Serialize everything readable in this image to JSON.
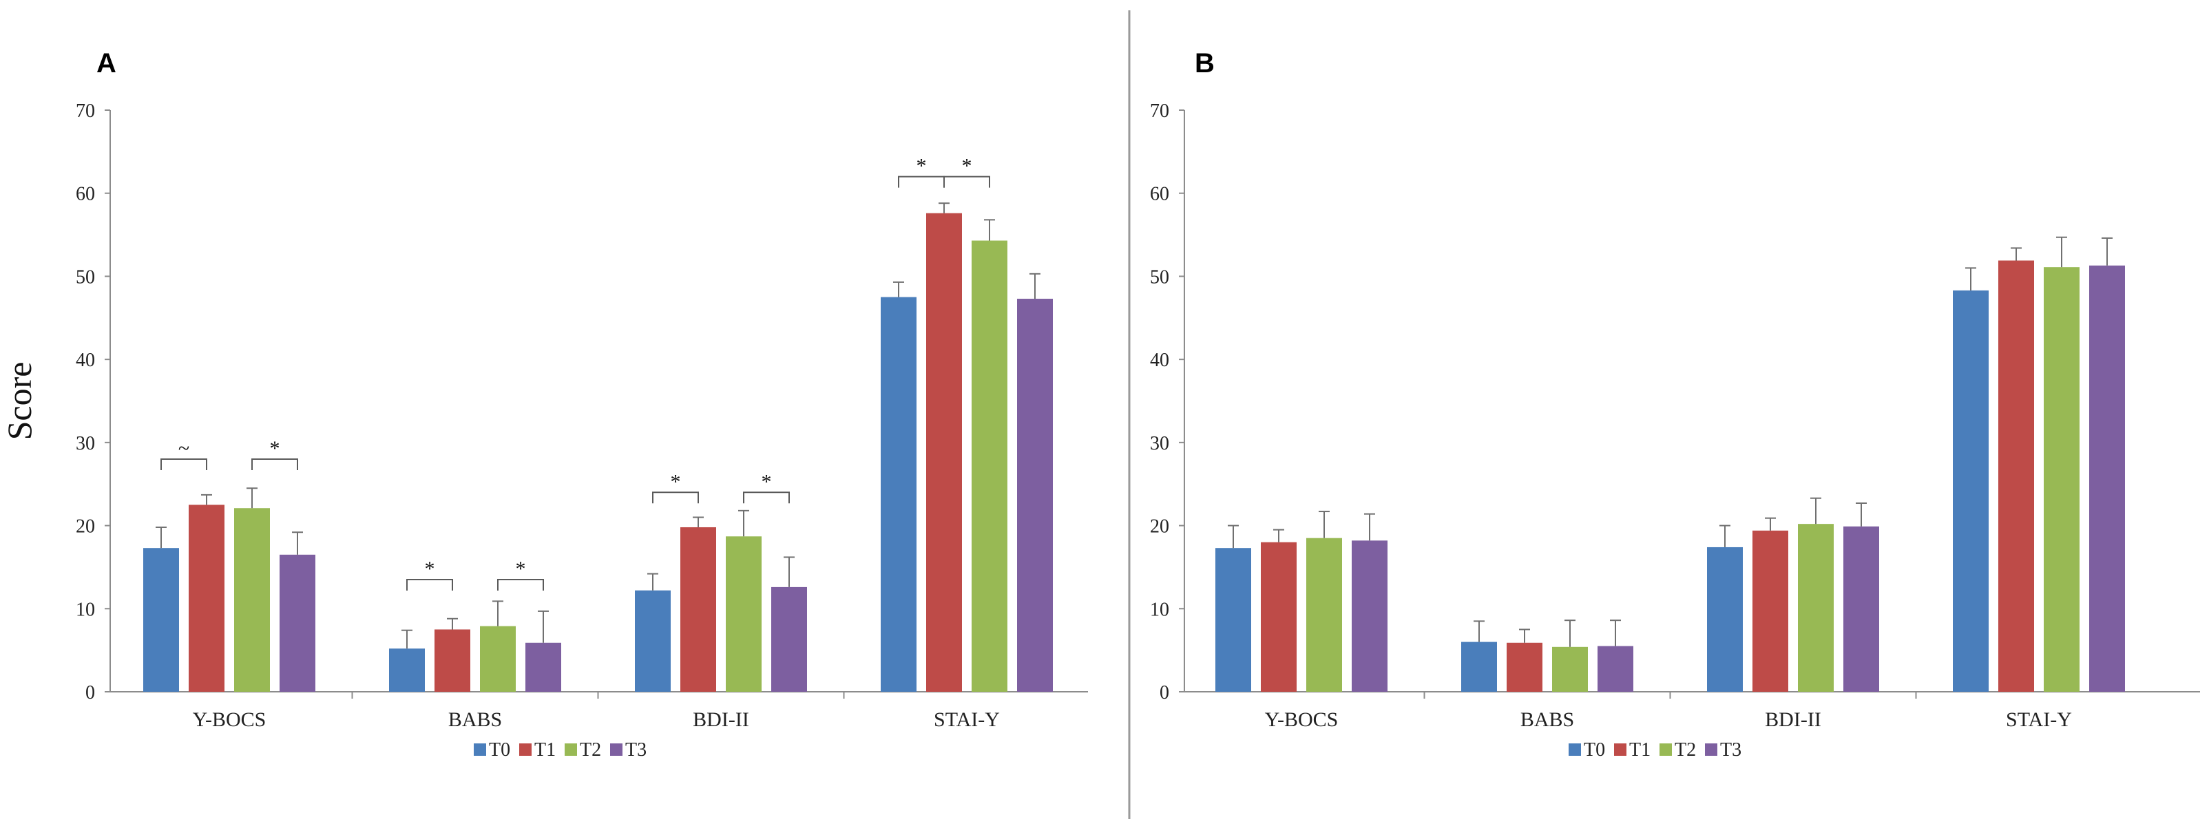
{
  "colors": {
    "T0": "#4a7ebb",
    "T1": "#be4b48",
    "T2": "#98b954",
    "T3": "#7d5fa0"
  },
  "chart_data": [
    {
      "type": "bar",
      "panel": "A",
      "ylabel": "Score",
      "xlabel": "",
      "ylim": [
        0,
        70
      ],
      "yticks": [
        "0",
        "10",
        "20",
        "30",
        "40",
        "50",
        "60",
        "70"
      ],
      "categories": [
        "Y-BOCS",
        "BABS",
        "BDI-II",
        "STAI-Y"
      ],
      "legend": {
        "position": "bottom-center",
        "entries": [
          "T0",
          "T1",
          "T2",
          "T3"
        ]
      },
      "series": [
        {
          "name": "T0",
          "values": [
            17.3,
            5.2,
            12.2,
            47.5
          ],
          "errors": [
            2.5,
            2.2,
            2.0,
            1.8
          ]
        },
        {
          "name": "T1",
          "values": [
            22.5,
            7.5,
            19.8,
            57.6
          ],
          "errors": [
            1.2,
            1.3,
            1.2,
            1.2
          ]
        },
        {
          "name": "T2",
          "values": [
            22.1,
            7.9,
            18.7,
            54.3
          ],
          "errors": [
            2.4,
            3.0,
            3.1,
            2.5
          ]
        },
        {
          "name": "T3",
          "values": [
            16.5,
            5.9,
            12.6,
            47.3
          ],
          "errors": [
            2.7,
            3.8,
            3.6,
            3.0
          ]
        }
      ],
      "annotations": [
        {
          "category": "Y-BOCS",
          "from": "T0",
          "to": "T1",
          "level": 28,
          "label": "~"
        },
        {
          "category": "Y-BOCS",
          "from": "T2",
          "to": "T3",
          "level": 28,
          "label": "*"
        },
        {
          "category": "BABS",
          "from": "T0",
          "to": "T1",
          "level": 13.5,
          "label": "*"
        },
        {
          "category": "BABS",
          "from": "T2",
          "to": "T3",
          "level": 13.5,
          "label": "*"
        },
        {
          "category": "BDI-II",
          "from": "T0",
          "to": "T1",
          "level": 24,
          "label": "*"
        },
        {
          "category": "BDI-II",
          "from": "T2",
          "to": "T3",
          "level": 24,
          "label": "*"
        },
        {
          "category": "STAI-Y",
          "from": "T0",
          "to": "T1",
          "level": 62,
          "label": "*"
        },
        {
          "category": "STAI-Y",
          "from": "T1",
          "to": "T2",
          "level": 62,
          "label": "*"
        }
      ]
    },
    {
      "type": "bar",
      "panel": "B",
      "ylabel": "",
      "xlabel": "",
      "ylim": [
        0,
        70
      ],
      "yticks": [
        "0",
        "10",
        "20",
        "30",
        "40",
        "50",
        "60",
        "70"
      ],
      "categories": [
        "Y-BOCS",
        "BABS",
        "BDI-II",
        "STAI-Y"
      ],
      "legend": {
        "position": "bottom-center",
        "entries": [
          "T0",
          "T1",
          "T2",
          "T3"
        ]
      },
      "series": [
        {
          "name": "T0",
          "values": [
            17.3,
            6.0,
            17.4,
            48.3
          ],
          "errors": [
            2.7,
            2.5,
            2.6,
            2.7
          ]
        },
        {
          "name": "T1",
          "values": [
            18.0,
            5.9,
            19.4,
            51.9
          ],
          "errors": [
            1.5,
            1.6,
            1.5,
            1.5
          ]
        },
        {
          "name": "T2",
          "values": [
            18.5,
            5.4,
            20.2,
            51.1
          ],
          "errors": [
            3.2,
            3.2,
            3.1,
            3.6
          ]
        },
        {
          "name": "T3",
          "values": [
            18.2,
            5.5,
            19.9,
            51.3
          ],
          "errors": [
            3.2,
            3.1,
            2.8,
            3.3
          ]
        }
      ],
      "annotations": []
    }
  ]
}
